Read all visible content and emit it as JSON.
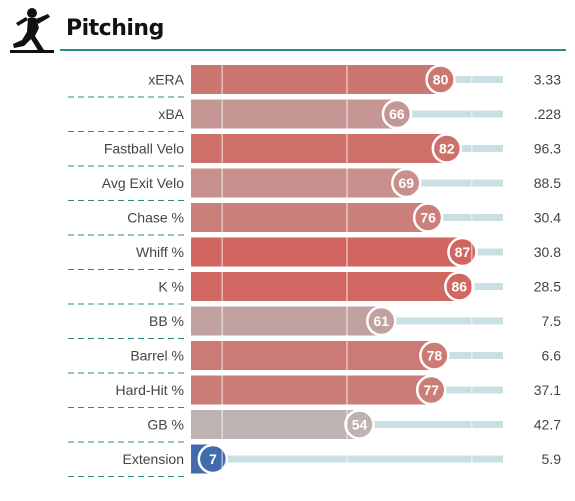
{
  "header": {
    "title": "Pitching",
    "icon": "pitcher-silhouette-icon"
  },
  "colors": {
    "accent_line": "#2e8b84",
    "low_percentile": "#2e5eaa",
    "mid_percentile": "#bcbcbc",
    "high_percentile": "#d8473e",
    "track": "#c9dfe1"
  },
  "chart_data": {
    "type": "bar",
    "orientation": "horizontal",
    "xlim": [
      0,
      100
    ],
    "gridlines": [
      10,
      50,
      90
    ],
    "metrics": [
      {
        "label": "xERA",
        "percentile": 80,
        "value": "3.33"
      },
      {
        "label": "xBA",
        "percentile": 66,
        "value": ".228"
      },
      {
        "label": "Fastball Velo",
        "percentile": 82,
        "value": "96.3"
      },
      {
        "label": "Avg Exit Velo",
        "percentile": 69,
        "value": "88.5"
      },
      {
        "label": "Chase %",
        "percentile": 76,
        "value": "30.4"
      },
      {
        "label": "Whiff %",
        "percentile": 87,
        "value": "30.8"
      },
      {
        "label": "K %",
        "percentile": 86,
        "value": "28.5"
      },
      {
        "label": "BB %",
        "percentile": 61,
        "value": "7.5"
      },
      {
        "label": "Barrel %",
        "percentile": 78,
        "value": "6.6"
      },
      {
        "label": "Hard-Hit %",
        "percentile": 77,
        "value": "37.1"
      },
      {
        "label": "GB %",
        "percentile": 54,
        "value": "42.7"
      },
      {
        "label": "Extension",
        "percentile": 7,
        "value": "5.9"
      }
    ]
  }
}
